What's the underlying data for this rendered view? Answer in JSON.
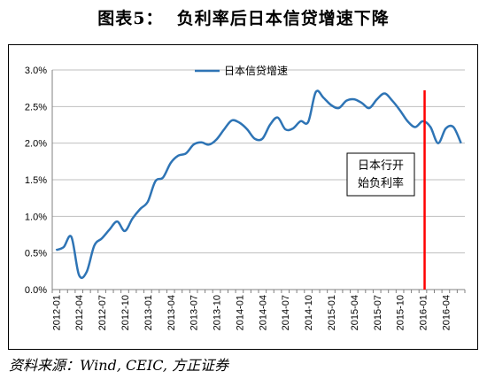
{
  "figure": {
    "title": "图表5：  负利率后日本信贷增速下降",
    "source": "资料来源：Wind, CEIC, 方正证券"
  },
  "chart_data": {
    "type": "line",
    "title": "",
    "xlabel": "",
    "ylabel": "",
    "ylim": [
      0,
      3.0
    ],
    "yticks": [
      "0.0%",
      "0.5%",
      "1.0%",
      "1.5%",
      "2.0%",
      "2.5%",
      "3.0%"
    ],
    "xticks": [
      "2012-01",
      "2012-04",
      "2012-07",
      "2012-10",
      "2013-01",
      "2013-04",
      "2013-07",
      "2013-10",
      "2014-01",
      "2014-04",
      "2014-07",
      "2014-10",
      "2015-01",
      "2015-04",
      "2015-07",
      "2015-10",
      "2016-01",
      "2016-04"
    ],
    "grid": "horizontal",
    "legend": "top-center",
    "series": [
      {
        "name": "日本信贷增速",
        "color": "#2e74b5",
        "x": [
          "2012-01",
          "2012-02",
          "2012-03",
          "2012-04",
          "2012-05",
          "2012-06",
          "2012-07",
          "2012-08",
          "2012-09",
          "2012-10",
          "2012-11",
          "2012-12",
          "2013-01",
          "2013-02",
          "2013-03",
          "2013-04",
          "2013-05",
          "2013-06",
          "2013-07",
          "2013-08",
          "2013-09",
          "2013-10",
          "2013-11",
          "2013-12",
          "2014-01",
          "2014-02",
          "2014-03",
          "2014-04",
          "2014-05",
          "2014-06",
          "2014-07",
          "2014-08",
          "2014-09",
          "2014-10",
          "2014-11",
          "2014-12",
          "2015-01",
          "2015-02",
          "2015-03",
          "2015-04",
          "2015-05",
          "2015-06",
          "2015-07",
          "2015-08",
          "2015-09",
          "2015-10",
          "2015-11",
          "2015-12",
          "2016-01",
          "2016-02",
          "2016-03",
          "2016-04",
          "2016-05",
          "2016-06"
        ],
        "values": [
          0.54,
          0.58,
          0.72,
          0.2,
          0.24,
          0.6,
          0.7,
          0.82,
          0.93,
          0.8,
          0.97,
          1.1,
          1.2,
          1.48,
          1.53,
          1.73,
          1.83,
          1.86,
          1.98,
          2.01,
          1.98,
          2.05,
          2.19,
          2.31,
          2.28,
          2.19,
          2.06,
          2.06,
          2.25,
          2.35,
          2.19,
          2.2,
          2.3,
          2.29,
          2.7,
          2.62,
          2.52,
          2.48,
          2.58,
          2.6,
          2.55,
          2.48,
          2.6,
          2.68,
          2.58,
          2.45,
          2.3,
          2.22,
          2.3,
          2.22,
          2.0,
          2.2,
          2.22,
          2.0
        ]
      }
    ],
    "annotations": [
      {
        "type": "vline",
        "x": "2016-01",
        "color": "#ff0000",
        "text_lines": [
          "日本行开",
          "始负利率"
        ]
      }
    ]
  }
}
